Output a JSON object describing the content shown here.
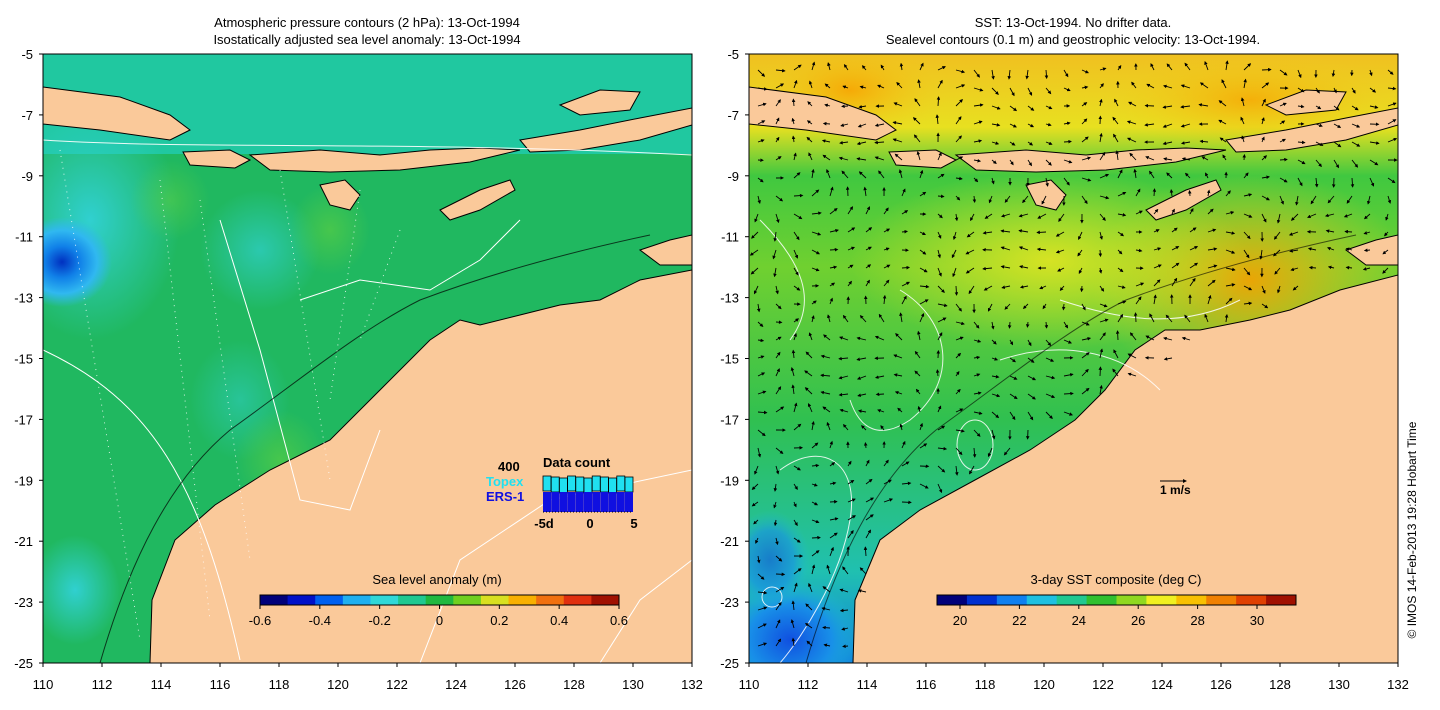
{
  "left_panel": {
    "title_line1": "Atmospheric pressure contours (2 hPa): 13-Oct-1994",
    "title_line2": "Isostatically adjusted sea level anomaly: 13-Oct-1994",
    "lon_ticks": [
      "110",
      "112",
      "114",
      "116",
      "118",
      "120",
      "122",
      "124",
      "126",
      "128",
      "130",
      "132"
    ],
    "lat_ticks": [
      "-5",
      "-7",
      "-9",
      "-11",
      "-13",
      "-15",
      "-17",
      "-19",
      "-21",
      "-23",
      "-25"
    ],
    "colorbar": {
      "label": "Sea level anomaly (m)",
      "ticks": [
        "-0.6",
        "-0.4",
        "-0.2",
        "0",
        "0.2",
        "0.4",
        "0.6"
      ],
      "colors": [
        "#00007a",
        "#0010c8",
        "#0060f0",
        "#20b0f0",
        "#30d8d8",
        "#20c890",
        "#20b840",
        "#70d020",
        "#d8e020",
        "#f8b000",
        "#f07010",
        "#e03010",
        "#a01000"
      ]
    },
    "inset": {
      "title": "Data count",
      "max_label": "400",
      "series_a": "Topex",
      "series_b": "ERS-1",
      "x_ticks": [
        "-5d",
        "0",
        "5"
      ],
      "topex_color": "#20e0f0",
      "ers_color": "#1010e0"
    }
  },
  "right_panel": {
    "title_line1": "SST: 13-Oct-1994. No drifter data.",
    "title_line2": "Sealevel contours (0.1 m) and geostrophic velocity: 13-Oct-1994.",
    "lon_ticks": [
      "110",
      "112",
      "114",
      "116",
      "118",
      "120",
      "122",
      "124",
      "126",
      "128",
      "130",
      "132"
    ],
    "lat_ticks": [
      "-5",
      "-7",
      "-9",
      "-11",
      "-13",
      "-15",
      "-17",
      "-19",
      "-21",
      "-23",
      "-25"
    ],
    "colorbar": {
      "label": "3-day SST composite (deg C)",
      "ticks": [
        "20",
        "22",
        "24",
        "26",
        "28",
        "30"
      ],
      "colors": [
        "#00007a",
        "#0030d0",
        "#1080f0",
        "#20c0e0",
        "#20c890",
        "#30c030",
        "#90d820",
        "#f0f020",
        "#f8c000",
        "#f08000",
        "#e04000",
        "#a01000"
      ]
    },
    "velocity_scale": "1 m/s"
  },
  "credit": "© IMOS 14-Feb-2013 19:28 Hobart Time",
  "colors": {
    "land": "#fac99a",
    "ocean_left": "#20b860",
    "ocean_right": "#f0d020"
  }
}
